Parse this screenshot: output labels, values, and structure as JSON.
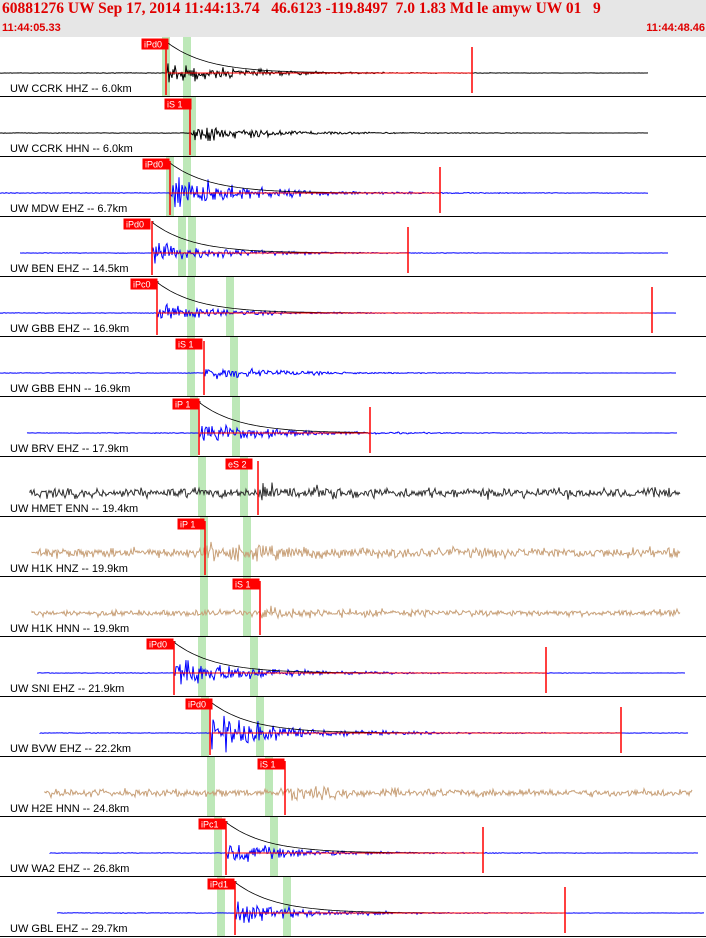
{
  "header": {
    "title": "60881276 UW Sep 17, 2014 11:44:13.74   46.6123 -119.8497  7.0 1.83 Md le amyw UW 01   9",
    "start_time": "11:44:05.33",
    "end_time": "11:44:48.46"
  },
  "colors": {
    "header_bg": "#e6e6e6",
    "header_text": "#e00000",
    "pick": "#ff0000",
    "pick_window": "#bde8b8",
    "trace_blue": "#0000ff",
    "trace_black": "#000000",
    "trace_gray": "#303030",
    "trace_tan": "#c8a078"
  },
  "traces": [
    {
      "label": "UW CCRK HHZ -- 6.0km",
      "color": "black",
      "pick": "iPd0",
      "amp": 0.55
    },
    {
      "label": "UW CCRK HHN -- 6.0km",
      "color": "black",
      "pick": "iS 1",
      "amp": 0.5
    },
    {
      "label": "UW MDW EHZ -- 6.7km",
      "color": "blue",
      "pick": "iPd0",
      "amp": 1.0
    },
    {
      "label": "UW BEN EHZ -- 14.5km",
      "color": "blue",
      "pick": "iPd0",
      "amp": 0.55
    },
    {
      "label": "UW GBB EHZ -- 16.9km",
      "color": "blue",
      "pick": "iPc0",
      "amp": 0.45
    },
    {
      "label": "UW GBB EHN -- 16.9km",
      "color": "blue",
      "pick": "iS 1",
      "amp": 0.4
    },
    {
      "label": "UW BRV EHZ -- 17.9km",
      "color": "blue",
      "pick": "iP 1",
      "amp": 0.6
    },
    {
      "label": "UW HMET ENN -- 19.4km",
      "color": "gray",
      "pick": "eS 2",
      "amp": 0.75
    },
    {
      "label": "UW H1K HNZ -- 19.9km",
      "color": "tan",
      "pick": "iP 1",
      "amp": 0.8
    },
    {
      "label": "UW H1K HNN -- 19.9km",
      "color": "tan",
      "pick": "iS 1",
      "amp": 0.5
    },
    {
      "label": "UW SNI EHZ -- 21.9km",
      "color": "blue",
      "pick": "iPd0",
      "amp": 0.9
    },
    {
      "label": "UW BVW EHZ -- 22.2km",
      "color": "blue",
      "pick": "iPd0",
      "amp": 1.0
    },
    {
      "label": "UW H2E HNN -- 24.8km",
      "color": "tan",
      "pick": "iS 1",
      "amp": 0.6
    },
    {
      "label": "UW WA2 EHZ -- 26.8km",
      "color": "blue",
      "pick": "iPc1",
      "amp": 0.6
    },
    {
      "label": "UW GBL EHZ -- 29.7km",
      "color": "blue",
      "pick": "iPd1",
      "amp": 0.55
    }
  ]
}
